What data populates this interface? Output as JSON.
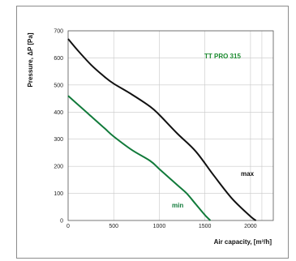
{
  "chart_data": {
    "type": "line",
    "title": "TT PRO 315",
    "xlabel": "Air capacity, [m³/h]",
    "ylabel": "Pressure, ΔP [Pa]",
    "xlim": [
      0,
      2250
    ],
    "ylim": [
      0,
      700
    ],
    "x_ticks": [
      0,
      500,
      1000,
      1500,
      2000
    ],
    "y_ticks": [
      0,
      100,
      200,
      300,
      400,
      500,
      600,
      700
    ],
    "grid": true,
    "colors": {
      "title": "#1a8a2e",
      "max": "#111111",
      "min": "#117a3a",
      "grid": "#c8c8c8"
    },
    "series": [
      {
        "name": "max",
        "x": [
          0,
          100,
          250,
          400,
          500,
          700,
          900,
          1000,
          1200,
          1400,
          1600,
          1800,
          2000,
          2060
        ],
        "y": [
          670,
          630,
          575,
          530,
          505,
          465,
          420,
          390,
          320,
          255,
          165,
          80,
          15,
          0
        ]
      },
      {
        "name": "min",
        "x": [
          0,
          100,
          250,
          400,
          500,
          700,
          900,
          1000,
          1200,
          1300,
          1400,
          1500,
          1560
        ],
        "y": [
          460,
          430,
          385,
          340,
          310,
          260,
          220,
          190,
          130,
          100,
          60,
          20,
          0
        ]
      }
    ]
  }
}
